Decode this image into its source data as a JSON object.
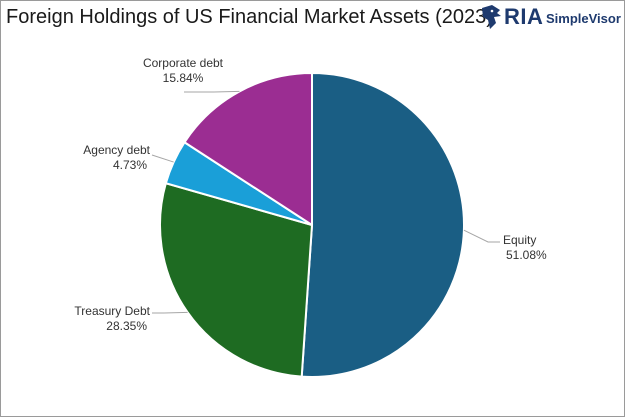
{
  "title": "Foreign Holdings of US Financial Market Assets (2023)",
  "brand": {
    "ria": "RIA",
    "simplevisor": "SimpleVisor",
    "logo_icon": "eagle-head-icon",
    "color": "#1e3a6e"
  },
  "chart_data": {
    "type": "pie",
    "title": "Foreign Holdings of US Financial Market Assets (2023)",
    "slices": [
      {
        "name": "Equity",
        "value": 51.08,
        "label_value": "51.08%",
        "color": "#1a5e84"
      },
      {
        "name": "Treasury Debt",
        "value": 28.35,
        "label_value": "28.35%",
        "color": "#1e6b22"
      },
      {
        "name": "Agency debt",
        "value": 4.73,
        "label_value": "4.73%",
        "color": "#1a9fd8"
      },
      {
        "name": "Corporate debt",
        "value": 15.84,
        "label_value": "15.84%",
        "color": "#9b2d92"
      }
    ],
    "start_angle_deg": 0,
    "direction": "clockwise",
    "legend": "none",
    "data_labels": "outside-with-leader-lines"
  }
}
